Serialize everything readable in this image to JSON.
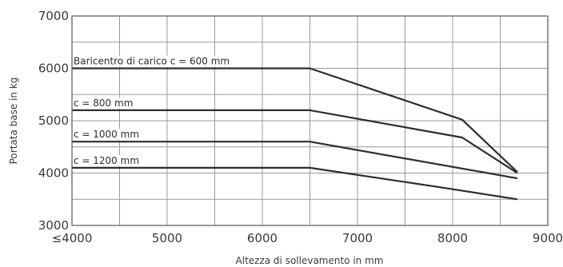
{
  "chart_data": {
    "type": "line",
    "xlabel": "Altezza di sollevamento in mm",
    "ylabel": "Portata base in kg",
    "xlim": [
      4000,
      9000
    ],
    "ylim": [
      3000,
      7000
    ],
    "x_ticks": [
      4000,
      5000,
      6000,
      7000,
      8000,
      9000
    ],
    "x_tick_labels": [
      "≤4000",
      "5000",
      "6000",
      "7000",
      "8000",
      "9000"
    ],
    "y_ticks": [
      3000,
      4000,
      5000,
      6000,
      7000
    ],
    "y_tick_labels": [
      "3000",
      "4000",
      "5000",
      "6000",
      "7000"
    ],
    "x_grid": [
      4000,
      4500,
      5000,
      5500,
      6000,
      6500,
      7000,
      7500,
      8000,
      8500,
      9000
    ],
    "y_grid": [
      3000,
      3500,
      4000,
      4500,
      5000,
      5500,
      6000,
      6500,
      7000
    ],
    "grid": true,
    "series": [
      {
        "name": "Baricentro di carico c = 600 mm",
        "x": [
          4000,
          6500,
          8100,
          8680
        ],
        "y": [
          6000,
          6000,
          5020,
          4020
        ]
      },
      {
        "name": "c = 800 mm",
        "x": [
          4000,
          6500,
          8100,
          8680
        ],
        "y": [
          5200,
          5200,
          4680,
          4000
        ]
      },
      {
        "name": "c = 1000 mm",
        "x": [
          4000,
          6500,
          8680
        ],
        "y": [
          4600,
          4600,
          3900
        ]
      },
      {
        "name": "c = 1200 mm",
        "x": [
          4000,
          6500,
          7900,
          8680
        ],
        "y": [
          4100,
          4100,
          3720,
          3500
        ]
      }
    ]
  }
}
